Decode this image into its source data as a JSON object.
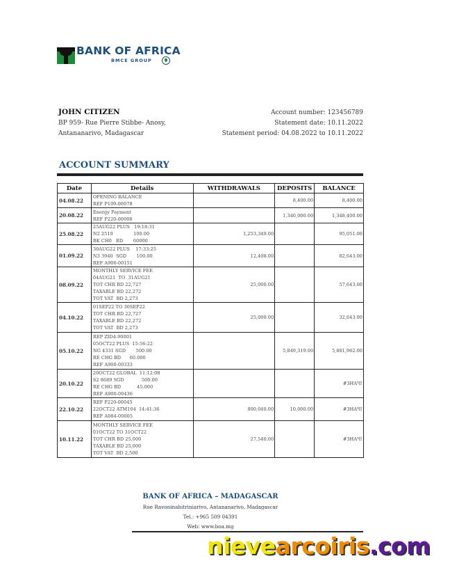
{
  "bank": {
    "logo_text": "BANK OF AFRICA",
    "logo_sub": "BMCE GROUP"
  },
  "customer": {
    "name": "JOHN CITIZEN",
    "address_line1": "BP 959- Rue Pierre Stibbe- Anosy,",
    "address_line2": "Antananarivo, Madagascar"
  },
  "statement": {
    "account_number": "Account number: 123456789",
    "statement_date": "Statement date: 10.11.2022",
    "period": "Statement period: 04.08.2022 to 10.11.2022"
  },
  "summary_title": "ACCOUNT SUMMARY",
  "table": {
    "headers": [
      "Date",
      "Details",
      "WITHDRAWALS",
      "DEPOSITS",
      "BALANCE"
    ],
    "rows": [
      {
        "date": "04.08.22",
        "details": [
          "OPENING BALANCE",
          "REF P109-00078"
        ],
        "withdrawal": "",
        "deposit": "8,400.00",
        "balance": "8,400.00"
      },
      {
        "date": "20.08.22",
        "details": [
          "Energy Payment",
          "REF P220-00008"
        ],
        "withdrawal": "",
        "deposit": "1,340,000.00",
        "balance": "1,348,400.00"
      },
      {
        "date": "25.08.22",
        "details": [
          "25AUG22 PLUS   19:18:31",
          "N2 2519              100.00",
          "BK CH0   BD       60000"
        ],
        "withdrawal": "1,253,349.00",
        "deposit": "",
        "balance": "95,051.00"
      },
      {
        "date": "01.09.22",
        "details": [
          "30AUG22 PLUS    17:33:25",
          "N3 3940  SGD       100.00",
          "REF A900-00151"
        ],
        "withdrawal": "12,408.00",
        "deposit": "",
        "balance": "82,643.00"
      },
      {
        "date": "08.09.22",
        "details": [
          "MONTHLY SERVICE FEE",
          "04AUG21  TO  31AUG21",
          "TOT CHR BD 22,727",
          "TAXABLE BD 22,272",
          "TOT VAT  BD 2,273"
        ],
        "withdrawal": "25,000.00",
        "deposit": "",
        "balance": "57,643.00"
      },
      {
        "date": "04.10.22",
        "details": [
          "01SEP22 TO 30SEP22",
          "TOT CHR BD 22,727",
          "TAXABLE BD 22,272",
          "TOT VAT  BD 2,273"
        ],
        "withdrawal": "25,000.00",
        "deposit": "",
        "balance": "32,643.00"
      },
      {
        "date": "05.10.22",
        "details": [
          "REP ZID4-90001",
          "05OCT22 PLUS  15:56:22",
          "NG 4331 SGD       500.00",
          "RE CHG BD      60.000",
          "REF A900-00333"
        ],
        "withdrawal": "",
        "deposit": "5,849,319.00",
        "balance": "5,881,962.00"
      },
      {
        "date": "20.10.22",
        "details": [
          "20OCT22 GLOBAL  11:12:08",
          "S2 8689 SGD            500.00",
          "RE CHG BD           45.000",
          "REF A900-00436"
        ],
        "withdrawal": "",
        "deposit": "",
        "balance": "#ЗНАЧ!"
      },
      {
        "date": "22.10.22",
        "details": [
          "REF P220-00045",
          "22OCT22 ATM104  14:41:36",
          "REF A084-00005"
        ],
        "withdrawal": "800,040.00",
        "deposit": "10,000.00",
        "balance": "#ЗНАЧ!"
      },
      {
        "date": "10.11.22",
        "details": [
          "MONTHLY SERVICE FEE",
          "01OCT22 TO 31OCT22",
          "TOT CHR BD 25,000",
          "TAXABLE BD 25,000",
          "TOT VAT  BD 2,500"
        ],
        "withdrawal": "27,540.00",
        "deposit": "",
        "balance": "#ЗНАЧ!"
      }
    ]
  },
  "footer": {
    "title": "BANK OF AFRICA – MADAGASCAR",
    "address": "Rue Ravoninahitriniarivo, Antananarivo, Madagascar",
    "tel": "Tel.: +965 509 04391",
    "web": "Web: www.boa.mg"
  },
  "watermark": {
    "parts": [
      {
        "text": "nieve",
        "color": "#f2e600"
      },
      {
        "text": "arcoiris",
        "color": "#f08a00"
      },
      {
        "text": ".com",
        "color": "#5a1a9a"
      }
    ]
  },
  "colors": {
    "brand_blue": "#1d4f7c",
    "logo_green": "#1f8a3a"
  }
}
